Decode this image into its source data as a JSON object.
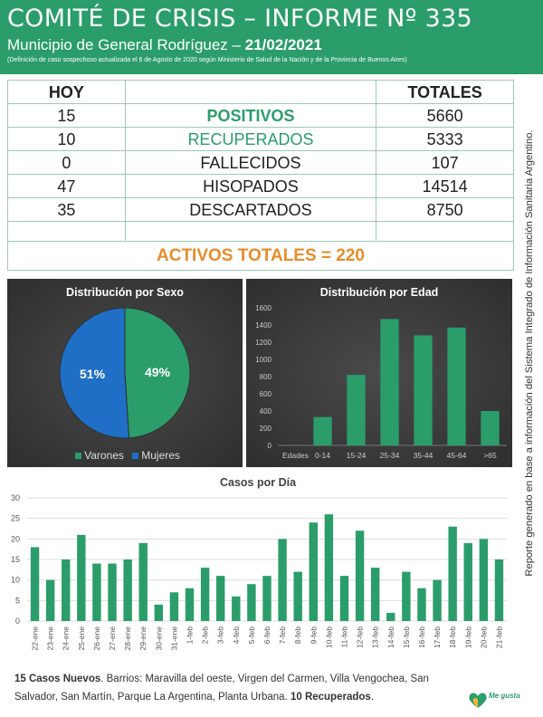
{
  "header": {
    "title": "COMITÉ DE CRISIS – INFORME Nº 335",
    "subtitle_prefix": "Municipio de General Rodríguez – ",
    "date": "21/02/2021",
    "note": "(Definición de caso sospechoso actualizada el 6 de Agosto de 2020 según Ministerio de Salud de la Nación y de la Provincia de Buenos Aires)"
  },
  "side_note": "Reporte generado en base a información del Sistema Integrado de Información Sanitaria Argentino.",
  "stats": {
    "col_today": "HOY",
    "col_totals": "TOTALES",
    "rows": [
      {
        "today": "15",
        "label": "POSITIVOS",
        "total": "5660"
      },
      {
        "today": "10",
        "label": "RECUPERADOS",
        "total": "5333"
      },
      {
        "today": "0",
        "label": "FALLECIDOS",
        "total": "107"
      },
      {
        "today": "47",
        "label": "HISOPADOS",
        "total": "14514"
      },
      {
        "today": "35",
        "label": "DESCARTADOS",
        "total": "8750"
      }
    ],
    "activos": "ACTIVOS TOTALES = 220"
  },
  "colors": {
    "green": "#2a9d6a",
    "blue": "#1f6fc6",
    "orange": "#e88c2a",
    "bar": "#2a9d6a"
  },
  "chart_data": [
    {
      "type": "pie",
      "title": "Distribución por Sexo",
      "labels": [
        "Varones",
        "Mujeres"
      ],
      "values": [
        49,
        51
      ],
      "data_labels": [
        "49%",
        "51%"
      ]
    },
    {
      "type": "bar",
      "title": "Distribución por Edad",
      "xlabel": "Edades",
      "categories": [
        "0-14",
        "15-24",
        "25-34",
        "35-44",
        "45-64",
        ">65"
      ],
      "values": [
        330,
        820,
        1470,
        1280,
        1370,
        400
      ],
      "ylim": [
        0,
        1600
      ],
      "yticks": [
        0,
        200,
        400,
        600,
        800,
        1000,
        1200,
        1400,
        1600
      ]
    },
    {
      "type": "bar",
      "title": "Casos por Día",
      "categories": [
        "22-ene",
        "23-ene",
        "24-ene",
        "25-ene",
        "26-ene",
        "27-ene",
        "28-ene",
        "29-ene",
        "30-ene",
        "31-ene",
        "1-feb",
        "2-feb",
        "3-feb",
        "4-feb",
        "5-feb",
        "6-feb",
        "7-feb",
        "8-feb",
        "9-feb",
        "10-feb",
        "11-feb",
        "12-feb",
        "13-feb",
        "14-feb",
        "15-feb",
        "16-feb",
        "17-feb",
        "18-feb",
        "19-feb",
        "20-feb",
        "21-feb"
      ],
      "values": [
        18,
        10,
        15,
        21,
        14,
        14,
        15,
        19,
        4,
        7,
        8,
        13,
        11,
        6,
        9,
        11,
        20,
        12,
        24,
        26,
        11,
        22,
        13,
        2,
        12,
        8,
        10,
        23,
        19,
        20,
        15
      ],
      "ylim": [
        0,
        30
      ],
      "yticks": [
        0,
        5,
        10,
        15,
        20,
        25,
        30
      ]
    }
  ],
  "footer": {
    "new_cases": "15 Casos Nuevos",
    "barrios": ". Barrios: Maravilla del oeste, Virgen del Carmen, Villa Vengochea, San Salvador, San Martín, Parque La Argentina, Planta Urbana. ",
    "recovered": "10 Recuperados",
    "end": "."
  },
  "logo": {
    "text": "Me gusta"
  }
}
